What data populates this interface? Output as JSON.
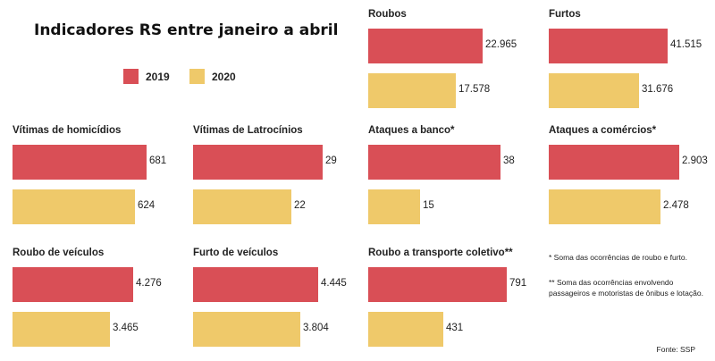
{
  "title": "Indicadores RS entre janeiro a abril",
  "legend": [
    {
      "label": "2019",
      "color": "#d94f56"
    },
    {
      "label": "2020",
      "color": "#efc96a"
    }
  ],
  "chart_data": [
    {
      "type": "bar",
      "title": "Roubos",
      "categories": [
        "2019",
        "2020"
      ],
      "values": [
        22965,
        17578
      ],
      "labels": [
        "22.965",
        "17.578"
      ]
    },
    {
      "type": "bar",
      "title": "Furtos",
      "categories": [
        "2019",
        "2020"
      ],
      "values": [
        41515,
        31676
      ],
      "labels": [
        "41.515",
        "31.676"
      ]
    },
    {
      "type": "bar",
      "title": "Vítimas de homicídios",
      "categories": [
        "2019",
        "2020"
      ],
      "values": [
        681,
        624
      ],
      "labels": [
        "681",
        "624"
      ]
    },
    {
      "type": "bar",
      "title": "Vítimas de Latrocínios",
      "categories": [
        "2019",
        "2020"
      ],
      "values": [
        29,
        22
      ],
      "labels": [
        "29",
        "22"
      ]
    },
    {
      "type": "bar",
      "title": "Ataques a banco*",
      "categories": [
        "2019",
        "2020"
      ],
      "values": [
        38,
        15
      ],
      "labels": [
        "38",
        "15"
      ]
    },
    {
      "type": "bar",
      "title": "Ataques a comércios*",
      "categories": [
        "2019",
        "2020"
      ],
      "values": [
        2903,
        2478
      ],
      "labels": [
        "2.903",
        "2.478"
      ]
    },
    {
      "type": "bar",
      "title": "Roubo de veículos",
      "categories": [
        "2019",
        "2020"
      ],
      "values": [
        4276,
        3465
      ],
      "labels": [
        "4.276",
        "3.465"
      ]
    },
    {
      "type": "bar",
      "title": "Furto de veículos",
      "categories": [
        "2019",
        "2020"
      ],
      "values": [
        4445,
        3804
      ],
      "labels": [
        "4.445",
        "3.804"
      ]
    },
    {
      "type": "bar",
      "title": "Roubo a transporte coletivo**",
      "categories": [
        "2019",
        "2020"
      ],
      "values": [
        791,
        431
      ],
      "labels": [
        "791",
        "431"
      ]
    }
  ],
  "notes": {
    "note1": "* Soma das ocorrências de roubo e furto.",
    "note2_line1": "** Soma das ocorrências envolvendo",
    "note2_line2": "passageiros e motoristas de ônibus e lotação."
  },
  "source": "Fonte: SSP"
}
